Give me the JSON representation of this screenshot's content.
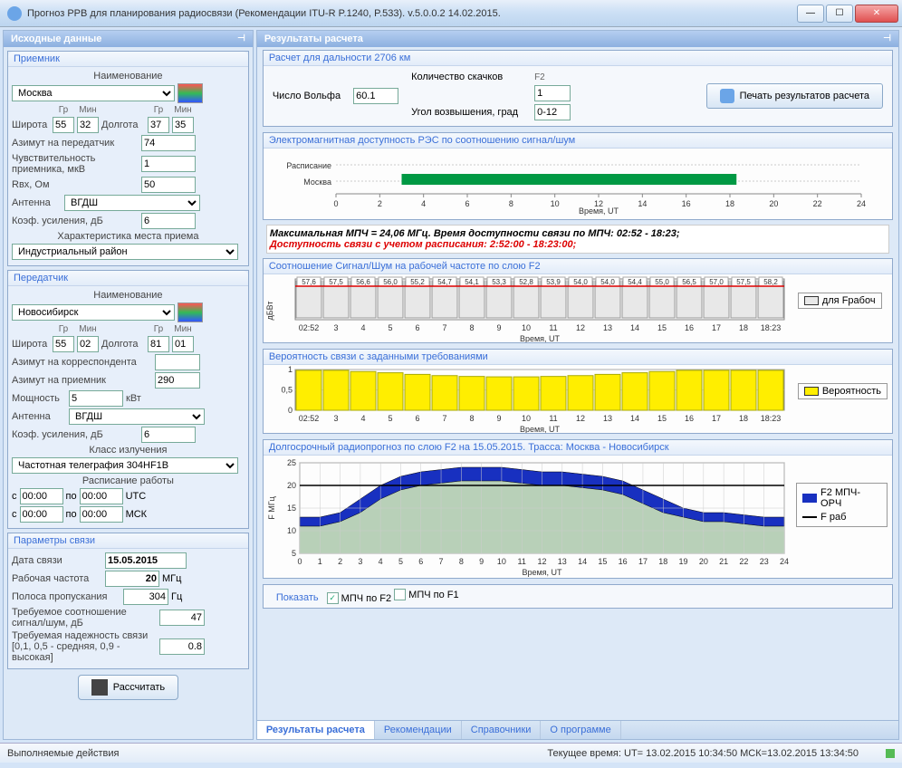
{
  "window": {
    "title": "Прогноз РРВ для планирования радиосвязи (Рекомендации ITU-R P.1240, P.533). v.5.0.0.2 14.02.2015."
  },
  "left_panel": {
    "title": "Исходные данные"
  },
  "right_panel": {
    "title": "Результаты расчета"
  },
  "receiver": {
    "title": "Приемник",
    "name_lbl": "Наименование",
    "name": "Москва",
    "lat_lbl": "Широта",
    "lat_deg_hdr": "Гр",
    "lat_min_hdr": "Мин",
    "lat_deg": "55",
    "lat_min": "32",
    "lon_lbl": "Долгота",
    "lon_deg": "37",
    "lon_min": "35",
    "azimuth_tx_lbl": "Азимут на передатчик",
    "azimuth_tx": "74",
    "sensitivity_lbl": "Чувствительность приемника, мкВ",
    "sensitivity": "1",
    "rin_lbl": "Rвх, Ом",
    "rin": "50",
    "antenna_lbl": "Антенна",
    "antenna": "ВГДШ",
    "gain_lbl": "Коэф. усиления, дБ",
    "gain": "6",
    "location_lbl": "Характеристика места приема",
    "location": "Индустриальный район"
  },
  "transmitter": {
    "title": "Передатчик",
    "name_lbl": "Наименование",
    "name": "Новосибирск",
    "lat_lbl": "Широта",
    "lat_deg": "55",
    "lat_min": "02",
    "lon_lbl": "Долгота",
    "lon_deg": "81",
    "lon_min": "01",
    "azimuth_corr_lbl": "Азимут на корреспондента",
    "azimuth_corr": "",
    "azimuth_rx_lbl": "Азимут на приемник",
    "azimuth_rx": "290",
    "power_lbl": "Мощность",
    "power": "5",
    "power_unit": "кВт",
    "antenna_lbl": "Антенна",
    "antenna": "ВГДШ",
    "gain_lbl": "Коэф. усиления, дБ",
    "gain": "6",
    "emission_class_lbl": "Класс излучения",
    "emission_class": "Частотная телеграфия 304HF1B",
    "schedule_lbl": "Расписание работы",
    "from": "с",
    "to": "по",
    "t1": "00:00",
    "t2": "00:00",
    "utc": "UTC",
    "t3": "00:00",
    "t4": "00:00",
    "msk": "МСК"
  },
  "params": {
    "title": "Параметры связи",
    "date_lbl": "Дата связи",
    "date": "15.05.2015",
    "freq_lbl": "Рабочая частота",
    "freq": "20",
    "freq_unit": "МГц",
    "bw_lbl": "Полоса пропускания",
    "bw": "304",
    "bw_unit": "Гц",
    "snr_lbl": "Требуемое соотношение сигнал/шум, дБ",
    "snr": "47",
    "reliability_lbl": "Требуемая надежность связи [0,1, 0,5 - средняя, 0,9 - высокая]",
    "reliability": "0.8"
  },
  "calc_btn": "Рассчитать",
  "calc": {
    "distance_title": "Расчет для дальности 2706 км",
    "wolf_lbl": "Число Вольфа",
    "wolf": "60.1",
    "hops_lbl": "Количество скачков",
    "hops": "1",
    "hops_hdr": "F2",
    "elevation_lbl": "Угол возвышения, град",
    "elevation": "0-12",
    "print_btn": "Печать результатов расчета"
  },
  "chart1": {
    "title": "Электромагнитная доступность РЭС по соотношению сигнал/шум",
    "rows": [
      "Расписание",
      "Москва"
    ],
    "xaxis": "Время, UT",
    "xticks": [
      0,
      2,
      4,
      6,
      8,
      10,
      12,
      14,
      16,
      18,
      20,
      22,
      24
    ],
    "bar_color": "#009944",
    "bar_start": 3,
    "bar_end": 18.3
  },
  "info": {
    "line1": "Максимальная МПЧ = 24,06 МГц.  Время доступности связи по МПЧ: 02:52 - 18:23;",
    "line2": "Доступность связи с учетом расписания: 2:52:00 - 18:23:00;"
  },
  "chart2": {
    "title": "Соотношение Сигнал/Шум на рабочей частоте по слою F2",
    "ylabel": "дБВт",
    "xaxis": "Время, UT",
    "values": [
      57.6,
      57.5,
      56.6,
      56.0,
      55.2,
      54.7,
      54.1,
      53.3,
      52.8,
      53.9,
      54.0,
      54.0,
      54.4,
      55.0,
      56.5,
      57.0,
      57.5,
      58.2
    ],
    "legend": "для Fрабоч",
    "xticks": [
      "02:52",
      3,
      4,
      5,
      6,
      7,
      8,
      9,
      10,
      11,
      12,
      13,
      14,
      15,
      16,
      17,
      18,
      "18:23"
    ],
    "bar_color": "#e8e8e8",
    "line_color": "#d00"
  },
  "chart3": {
    "title": "Вероятность связи с заданными требованиями",
    "xaxis": "Время, UT",
    "ylim": [
      0,
      1
    ],
    "ytick": 0.5,
    "bar_color": "#ffee00",
    "legend": "Вероятность",
    "values": [
      0.98,
      0.98,
      0.95,
      0.92,
      0.88,
      0.85,
      0.83,
      0.82,
      0.82,
      0.83,
      0.85,
      0.88,
      0.92,
      0.95,
      0.98,
      0.98,
      0.98,
      0.98
    ],
    "xticks": [
      "02:52",
      3,
      4,
      5,
      6,
      7,
      8,
      9,
      10,
      11,
      12,
      13,
      14,
      15,
      16,
      17,
      18,
      "18:23"
    ]
  },
  "chart4": {
    "title": "Долгосрочный радиопрогноз по слою F2 на 15.05.2015. Трасса: Москва - Новосибирск",
    "ylabel": "F МГц",
    "xaxis": "Время, UT",
    "ylim": [
      5,
      25
    ],
    "yticks": [
      5,
      10,
      15,
      20,
      25
    ],
    "xticks": [
      0,
      1,
      2,
      3,
      4,
      5,
      6,
      7,
      8,
      9,
      10,
      11,
      12,
      13,
      14,
      15,
      16,
      17,
      18,
      19,
      20,
      21,
      22,
      23,
      24
    ],
    "upper": [
      13,
      13,
      14,
      17,
      20,
      22,
      23,
      23.5,
      24,
      24,
      24,
      23.5,
      23,
      23,
      22.5,
      22,
      21,
      19,
      17,
      15,
      14,
      14,
      13.5,
      13,
      13
    ],
    "lower": [
      11,
      11,
      12,
      14,
      17,
      19,
      20,
      20.5,
      21,
      21,
      21,
      20.5,
      20,
      20,
      19.5,
      19,
      18,
      16,
      14,
      13,
      12,
      12,
      11.5,
      11,
      11
    ],
    "band_color": "#1830c0",
    "fill_color": "#b8d0b8",
    "legend1": "F2 МПЧ-ОРЧ",
    "legend2": "F раб",
    "f_rab": 20
  },
  "show": {
    "title": "Показать",
    "cb1": "МПЧ по F2",
    "cb2": "МПЧ по F1",
    "checked1": true,
    "checked2": false
  },
  "tabs": [
    "Результаты расчета",
    "Рекомендации",
    "Справочники",
    "О программе"
  ],
  "status": {
    "actions": "Выполняемые действия",
    "time": "Текущее время:   UT= 13.02.2015 10:34:50    МСК=13.02.2015 13:34:50"
  }
}
